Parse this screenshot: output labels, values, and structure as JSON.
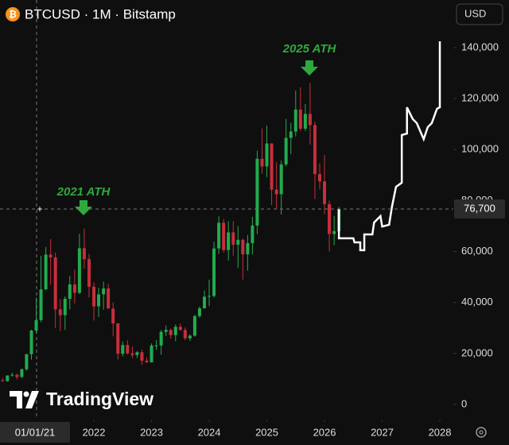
{
  "chart_data": {
    "type": "candlestick",
    "title": "BTCUSD · 1M · Bitstamp",
    "currency": "USD",
    "watermark": "TradingView",
    "up_color": "#22ab4e",
    "down_color": "#c62f3b",
    "annotations": [
      "2021 ATH",
      "2025 ATH"
    ],
    "annotation_color": "#2eaa3c",
    "xlim": [
      2020.372,
      2028.234
    ],
    "xticks": [
      2022,
      2023,
      2024,
      2025,
      2026,
      2027,
      2028
    ],
    "ylim": [
      -5000,
      158700
    ],
    "yticks": [
      0,
      {
        "value": 20000,
        "label": "20,000"
      },
      {
        "value": 40000,
        "label": "40,000"
      },
      {
        "value": 60000,
        "label": "60,000"
      },
      {
        "value": 80000,
        "label": "80,000"
      },
      {
        "value": 100000,
        "label": "100,000"
      },
      {
        "value": 120000,
        "label": "120,000"
      },
      {
        "value": 140000,
        "label": "140,000"
      }
    ],
    "crosshair": {
      "date_label": "01/01/21",
      "price": {
        "value": 76700,
        "label": "76,700"
      }
    },
    "candles": {
      "x": [
        2020.417,
        2020.5,
        2020.583,
        2020.667,
        2020.75,
        2020.833,
        2020.917,
        2021,
        2021.083,
        2021.167,
        2021.25,
        2021.333,
        2021.417,
        2021.5,
        2021.583,
        2021.667,
        2021.75,
        2021.833,
        2021.917,
        2022,
        2022.083,
        2022.167,
        2022.25,
        2022.333,
        2022.417,
        2022.5,
        2022.583,
        2022.667,
        2022.75,
        2022.833,
        2022.917,
        2023,
        2023.083,
        2023.167,
        2023.25,
        2023.333,
        2023.417,
        2023.5,
        2023.583,
        2023.667,
        2023.75,
        2023.833,
        2023.917,
        2024,
        2024.083,
        2024.167,
        2024.25,
        2024.333,
        2024.417,
        2024.5,
        2024.583,
        2024.667,
        2024.75,
        2024.833,
        2024.917,
        2025,
        2025.083,
        2025.167,
        2025.25,
        2025.333,
        2025.417,
        2025.5,
        2025.583,
        2025.667,
        2025.75,
        2025.833,
        2025.917,
        2026,
        2026.083,
        2026.167,
        2026.25
      ],
      "open": [
        9450,
        9140,
        11350,
        11650,
        10780,
        13800,
        19700,
        28990,
        33110,
        45150,
        58800,
        57700,
        37300,
        35040,
        41460,
        47100,
        43800,
        61300,
        57000,
        46200,
        38500,
        43200,
        45500,
        37650,
        31800,
        19900,
        23300,
        20050,
        19400,
        20500,
        17170,
        16540,
        23130,
        23150,
        28480,
        29270,
        27220,
        30480,
        29240,
        25940,
        26970,
        34660,
        37720,
        42280,
        42580,
        61200,
        71300,
        60600,
        67500,
        62700,
        64600,
        58900,
        63300,
        70200,
        96400,
        93400,
        102400,
        84300,
        82500,
        94200,
        104600,
        107100,
        115700,
        108200,
        114000,
        109600,
        90400,
        87500,
        78600,
        66900,
        68000
      ],
      "high": [
        10380,
        11440,
        12470,
        12080,
        14100,
        19850,
        29300,
        41950,
        58350,
        61780,
        64900,
        59600,
        41300,
        42400,
        50500,
        52900,
        67000,
        69000,
        59100,
        47900,
        45800,
        48200,
        47400,
        40000,
        31900,
        24700,
        25200,
        22800,
        21000,
        21500,
        18400,
        23950,
        25250,
        29200,
        31000,
        29800,
        31400,
        31800,
        30200,
        27500,
        35200,
        38400,
        44700,
        48970,
        63900,
        73800,
        72800,
        71900,
        71900,
        70000,
        65100,
        66500,
        73600,
        99600,
        108300,
        109400,
        102500,
        95000,
        95700,
        112000,
        110500,
        123200,
        124500,
        117900,
        126200,
        111000,
        94600,
        97900,
        80000,
        74000,
        77500
      ],
      "low": [
        8900,
        8970,
        10900,
        9830,
        10400,
        13200,
        17600,
        28130,
        32300,
        45000,
        47000,
        30000,
        28800,
        29300,
        37300,
        39600,
        43300,
        53300,
        42000,
        32900,
        34300,
        37200,
        37700,
        26700,
        17600,
        18800,
        19600,
        18200,
        18200,
        15500,
        16300,
        16500,
        21400,
        19600,
        26900,
        25800,
        24800,
        28900,
        25200,
        24900,
        26600,
        34100,
        37600,
        38500,
        41900,
        59100,
        59600,
        56500,
        58400,
        53500,
        49000,
        52500,
        58900,
        66800,
        90500,
        89200,
        78200,
        76600,
        74500,
        93400,
        98200,
        105100,
        107300,
        107300,
        102000,
        80600,
        84400,
        74600,
        60000,
        62500,
        65000
      ],
      "close": [
        9140,
        11350,
        11650,
        10780,
        13800,
        19700,
        28990,
        33110,
        45150,
        58800,
        57700,
        37300,
        35040,
        41460,
        47100,
        43800,
        61300,
        57000,
        46200,
        38500,
        43200,
        45500,
        37650,
        31800,
        19900,
        23300,
        20050,
        19400,
        20500,
        17170,
        16540,
        23130,
        23150,
        28480,
        29270,
        27220,
        30480,
        29240,
        25940,
        26970,
        34660,
        37720,
        42280,
        42580,
        61200,
        71300,
        60600,
        67500,
        62700,
        64600,
        58900,
        63300,
        70200,
        96400,
        93400,
        102400,
        84300,
        82500,
        94200,
        104600,
        107100,
        115700,
        108200,
        114000,
        109600,
        90400,
        87500,
        78600,
        66900,
        68000,
        76700
      ]
    },
    "projection": {
      "color": "#ffffff",
      "x": [
        2026.25,
        2026.25,
        2026.5,
        2026.52,
        2026.62,
        2026.62,
        2026.69,
        2026.69,
        2026.83,
        2026.86,
        2026.97,
        2027.0,
        2027.12,
        2027.17,
        2027.24,
        2027.34,
        2027.34,
        2027.43,
        2027.43,
        2027.53,
        2027.6,
        2027.72,
        2027.79,
        2027.86,
        2027.95,
        2028,
        2028
      ],
      "values": [
        76700,
        65200,
        65200,
        63600,
        63600,
        60500,
        60500,
        66700,
        66700,
        71400,
        73900,
        69800,
        70500,
        77600,
        85400,
        87000,
        105700,
        106300,
        116600,
        112000,
        110400,
        104100,
        108800,
        110400,
        116000,
        116600,
        142500
      ]
    }
  }
}
